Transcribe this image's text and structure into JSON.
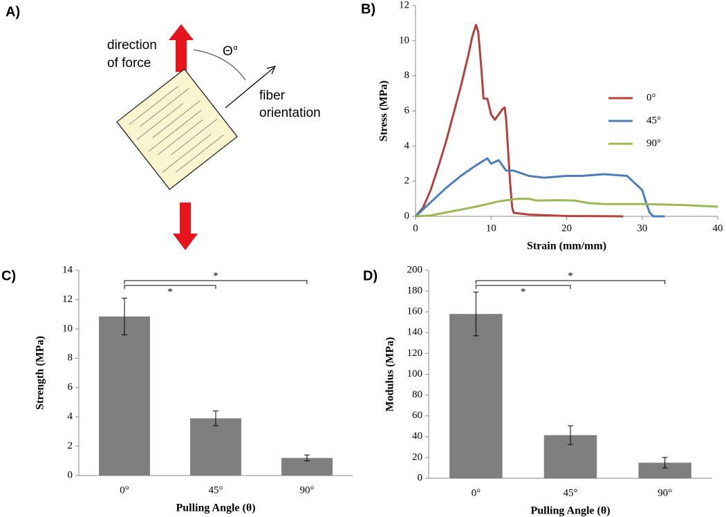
{
  "diagram": {
    "panel_label": "A)",
    "force_label_1": "direction",
    "force_label_2": "of force",
    "angle_label": "Θ°",
    "fiber_label_1": "fiber",
    "fiber_label_2": "orientation"
  },
  "chart_data": [
    {
      "type": "line",
      "panel_label": "B)",
      "x_label": "Strain (mm/mm)",
      "y_label": "Stress (MPa)",
      "xlim": [
        0,
        40
      ],
      "xticks": [
        0,
        10,
        20,
        30,
        40
      ],
      "ylim": [
        0,
        12
      ],
      "yticks": [
        0,
        2,
        4,
        6,
        8,
        10,
        12
      ],
      "grid": false,
      "series": [
        {
          "name": "0°",
          "color": "#b5403c",
          "x": [
            0,
            1,
            2,
            3,
            4,
            5,
            6,
            7,
            7.5,
            8,
            8.3,
            8.7,
            9,
            9.5,
            10,
            10.5,
            11,
            11.5,
            11.8,
            12,
            12.5,
            12.8,
            13,
            15,
            20,
            27.5
          ],
          "values": [
            0,
            0.5,
            1.5,
            2.8,
            4.2,
            5.8,
            7.4,
            9.2,
            10.2,
            10.9,
            10.5,
            8.5,
            6.7,
            6.7,
            5.8,
            5.5,
            5.8,
            6.1,
            6.2,
            5.5,
            2,
            0.5,
            0.2,
            0.1,
            0.02,
            0
          ]
        },
        {
          "name": "45°",
          "color": "#4a7ebb",
          "x": [
            0,
            2,
            4,
            6,
            8,
            9.5,
            10,
            11,
            12,
            13,
            15,
            17,
            20,
            22,
            25,
            28,
            29,
            30,
            30.5,
            31,
            31.5,
            33
          ],
          "values": [
            0,
            0.8,
            1.6,
            2.3,
            2.9,
            3.3,
            3.0,
            3.2,
            2.6,
            2.6,
            2.3,
            2.2,
            2.3,
            2.3,
            2.4,
            2.3,
            1.9,
            1.5,
            0.8,
            0.2,
            0,
            0
          ]
        },
        {
          "name": "90°",
          "color": "#98b954",
          "x": [
            0,
            2,
            5,
            8,
            11,
            13.5,
            15,
            16,
            19,
            21,
            23,
            25,
            30,
            35,
            40
          ],
          "values": [
            0,
            0.05,
            0.3,
            0.55,
            0.85,
            1.0,
            1.0,
            0.9,
            0.92,
            0.9,
            0.75,
            0.7,
            0.7,
            0.65,
            0.55
          ]
        }
      ]
    },
    {
      "type": "bar",
      "panel_label": "C)",
      "x_label": "Pulling Angle (θ)",
      "y_label": "Strength (MPa)",
      "categories": [
        "0°",
        "45°",
        "90°"
      ],
      "values": [
        10.85,
        3.9,
        1.2
      ],
      "errors": [
        1.25,
        0.5,
        0.2
      ],
      "color": "#7f7f7f",
      "ylim": [
        0,
        14
      ],
      "yticks": [
        0,
        2,
        4,
        6,
        8,
        10,
        12,
        14
      ],
      "significance_marks": [
        "*",
        "*"
      ]
    },
    {
      "type": "bar",
      "panel_label": "D)",
      "x_label": "Pulling Angle (θ)",
      "y_label": "Modulus (MPa)",
      "categories": [
        "0°",
        "45°",
        "90°"
      ],
      "values": [
        158,
        41.5,
        15
      ],
      "errors": [
        21,
        9,
        5
      ],
      "color": "#7f7f7f",
      "ylim": [
        0,
        200
      ],
      "yticks": [
        0,
        20,
        40,
        60,
        80,
        100,
        120,
        140,
        160,
        180,
        200
      ],
      "significance_marks": [
        "*",
        "*"
      ]
    }
  ]
}
